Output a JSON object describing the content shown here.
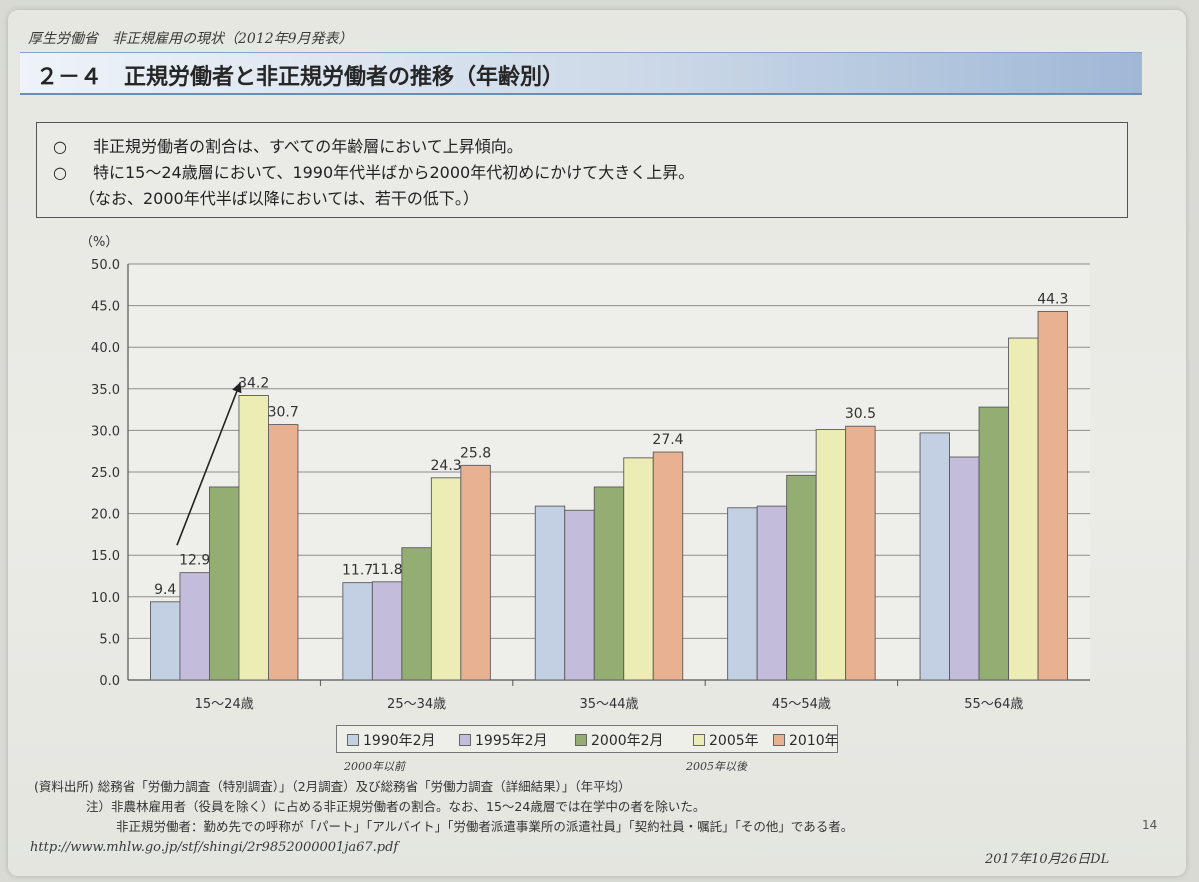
{
  "header_note": "厚生労働省　非正規雇用の現状（2012年9月発表）",
  "title": "２－４　正規労働者と非正規労働者の推移（年齢別）",
  "summary": {
    "line1_bullet": "○",
    "line1": "非正規労働者の割合は、すべての年齢層において上昇傾向。",
    "line2_bullet": "○",
    "line2": "特に15～24歳層において、1990年代半ばから2000年代初めにかけて大きく上昇。",
    "line3": "（なお、2000年代半ば以降においては、若干の低下。）"
  },
  "chart_data": {
    "type": "bar",
    "unit_label": "（%）",
    "ylim": [
      0,
      50
    ],
    "yticks": [
      "0.0",
      "5.0",
      "10.0",
      "15.0",
      "20.0",
      "25.0",
      "30.0",
      "35.0",
      "40.0",
      "45.0",
      "50.0"
    ],
    "categories": [
      "15～24歳",
      "25～34歳",
      "35～44歳",
      "45～54歳",
      "55～64歳"
    ],
    "grid": true,
    "legend_position": "bottom",
    "series": [
      {
        "name": "1990年2月",
        "color": "#c3cfe3",
        "values": [
          9.4,
          11.7,
          20.9,
          20.7,
          29.7
        ],
        "labels": [
          "9.4",
          "11.7",
          "",
          "",
          ""
        ]
      },
      {
        "name": "1995年2月",
        "color": "#c4bcdb",
        "values": [
          12.9,
          11.8,
          20.4,
          20.9,
          26.8
        ],
        "labels": [
          "12.9",
          "11.8",
          "",
          "",
          ""
        ]
      },
      {
        "name": "2000年2月",
        "color": "#93ad72",
        "values": [
          23.2,
          15.9,
          23.2,
          24.6,
          32.8
        ],
        "labels": [
          "",
          "",
          "",
          "",
          ""
        ]
      },
      {
        "name": "2005年",
        "color": "#ecedb5",
        "values": [
          34.2,
          24.3,
          26.7,
          30.1,
          41.1
        ],
        "labels": [
          "34.2",
          "24.3",
          "",
          "",
          ""
        ]
      },
      {
        "name": "2010年",
        "color": "#e8b292",
        "values": [
          30.7,
          25.8,
          27.4,
          30.5,
          44.3
        ],
        "labels": [
          "30.7",
          "25.8",
          "27.4",
          "30.5",
          "44.3"
        ]
      }
    ]
  },
  "legend_handwritten": [
    "2000年以前",
    "2005年以後"
  ],
  "notes": {
    "source": "(資料出所) 総務省「労働力調査（特別調査）」（2月調査）及び総務省「労働力調査（詳細結果）」（年平均）",
    "note1": "注）非農林雇用者（役員を除く）に占める非正規労働者の割合。なお、15～24歳層では在学中の者を除いた。",
    "note2": "非正規労働者：勤め先での呼称が「パート」「アルバイト」「労働者派遣事業所の派遣社員」「契約社員・嘱託」「その他」である者。",
    "url": "http://www.mhlw.go.jp/stf/shingi/2r9852000001ja67.pdf",
    "download_date": "2017年10月26日DL",
    "page_number": "14"
  }
}
